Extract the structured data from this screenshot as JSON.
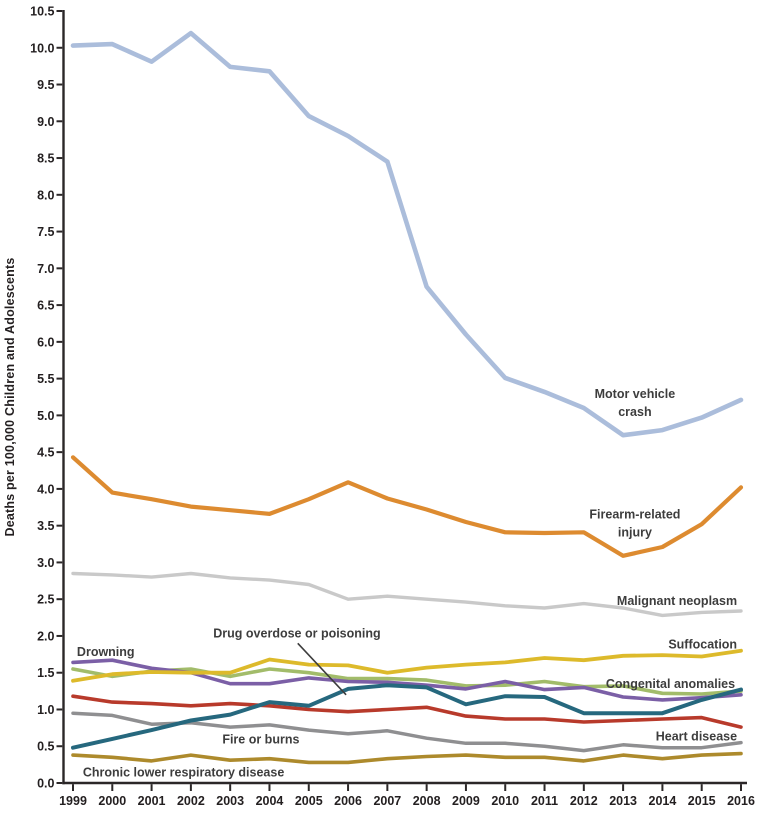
{
  "figure": {
    "background_color": "#ffffff",
    "axis_color": "#2b2728",
    "tick_text_color": "#231f20",
    "annotation_text_color": "#3d3d3d"
  },
  "chart_data": {
    "type": "line",
    "title": "",
    "xlabel": "",
    "ylabel": "Deaths per 100,000 Children and Adolescents",
    "ylim": [
      0,
      10.5
    ],
    "ytick_step": 0.5,
    "grid": false,
    "legend_position": "inline-annotations",
    "x": [
      1999,
      2000,
      2001,
      2002,
      2003,
      2004,
      2005,
      2006,
      2007,
      2008,
      2009,
      2010,
      2011,
      2012,
      2013,
      2014,
      2015,
      2016
    ],
    "series": [
      {
        "id": "chronic-lower-respiratory-disease",
        "name": "Chronic lower respiratory disease",
        "color": "#ad8a2c",
        "stroke_width": 3.6,
        "values": [
          0.38,
          0.35,
          0.3,
          0.38,
          0.31,
          0.33,
          0.28,
          0.28,
          0.33,
          0.36,
          0.38,
          0.35,
          0.35,
          0.3,
          0.38,
          0.33,
          0.38,
          0.4
        ]
      },
      {
        "id": "fire-or-burns",
        "name": "Fire or burns",
        "color": "#8f8f91",
        "stroke_width": 3.5,
        "values": [
          0.95,
          0.92,
          0.8,
          0.82,
          0.76,
          0.79,
          0.72,
          0.67,
          0.71,
          0.61,
          0.54,
          0.54,
          0.5,
          0.44,
          0.52,
          0.48,
          0.48,
          0.55
        ]
      },
      {
        "id": "heart-disease",
        "name": "Heart disease",
        "color": "#b83a2b",
        "stroke_width": 3.6,
        "values": [
          1.18,
          1.1,
          1.08,
          1.05,
          1.08,
          1.05,
          1.0,
          0.97,
          1.0,
          1.03,
          0.91,
          0.87,
          0.87,
          0.83,
          0.85,
          0.87,
          0.89,
          0.76
        ]
      },
      {
        "id": "malignant-neoplasm",
        "name": "Malignant neoplasm",
        "color": "#c9c9c9",
        "stroke_width": 3.4,
        "values": [
          2.85,
          2.83,
          2.8,
          2.85,
          2.79,
          2.76,
          2.7,
          2.5,
          2.54,
          2.5,
          2.46,
          2.41,
          2.38,
          2.44,
          2.38,
          2.28,
          2.32,
          2.34
        ]
      },
      {
        "id": "congenital-anomalies",
        "name": "Congenital anomalies",
        "color": "#a2bc6a",
        "stroke_width": 3.6,
        "values": [
          1.55,
          1.45,
          1.52,
          1.55,
          1.45,
          1.55,
          1.5,
          1.42,
          1.42,
          1.4,
          1.32,
          1.33,
          1.38,
          1.31,
          1.32,
          1.22,
          1.21,
          1.25
        ]
      },
      {
        "id": "drowning",
        "name": "Drowning",
        "color": "#7b5fa6",
        "stroke_width": 3.6,
        "values": [
          1.64,
          1.67,
          1.56,
          1.5,
          1.35,
          1.35,
          1.43,
          1.38,
          1.37,
          1.33,
          1.28,
          1.38,
          1.27,
          1.3,
          1.17,
          1.13,
          1.16,
          1.2
        ]
      },
      {
        "id": "suffocation",
        "name": "Suffocation",
        "color": "#ddba2b",
        "stroke_width": 3.8,
        "values": [
          1.39,
          1.48,
          1.51,
          1.5,
          1.5,
          1.68,
          1.61,
          1.6,
          1.5,
          1.57,
          1.61,
          1.64,
          1.7,
          1.67,
          1.73,
          1.74,
          1.72,
          1.8
        ]
      },
      {
        "id": "drug-overdose-or-poisoning",
        "name": "Drug overdose or poisoning",
        "color": "#26687e",
        "stroke_width": 4.0,
        "values": [
          0.48,
          0.6,
          0.72,
          0.85,
          0.93,
          1.1,
          1.05,
          1.28,
          1.33,
          1.3,
          1.07,
          1.18,
          1.17,
          0.95,
          0.95,
          0.95,
          1.13,
          1.27
        ]
      },
      {
        "id": "firearm-related-injury",
        "name": "Firearm-related injury",
        "color": "#dd8b30",
        "stroke_width": 4.2,
        "values": [
          4.43,
          3.95,
          3.86,
          3.76,
          3.71,
          3.66,
          3.86,
          4.09,
          3.87,
          3.72,
          3.55,
          3.41,
          3.4,
          3.41,
          3.09,
          3.21,
          3.52,
          4.02
        ]
      },
      {
        "id": "motor-vehicle-crash",
        "name": "Motor vehicle crash",
        "color": "#abbddb",
        "stroke_width": 4.6,
        "values": [
          10.03,
          10.05,
          9.81,
          10.2,
          9.74,
          9.68,
          9.07,
          8.8,
          8.45,
          6.75,
          6.1,
          5.51,
          5.32,
          5.1,
          4.73,
          4.8,
          4.97,
          5.21
        ]
      }
    ],
    "annotations": [
      {
        "id": "motor-vehicle-crash",
        "lines": [
          "Motor vehicle",
          "crash"
        ],
        "x": 2013.3,
        "y": 5.3,
        "anchor": "middle"
      },
      {
        "id": "firearm-related-injury",
        "lines": [
          "Firearm-related",
          "injury"
        ],
        "x": 2013.3,
        "y": 3.66,
        "anchor": "middle"
      },
      {
        "id": "malignant-neoplasm",
        "lines": [
          "Malignant neoplasm"
        ],
        "x": 2015.9,
        "y": 2.48,
        "anchor": "end"
      },
      {
        "id": "suffocation",
        "lines": [
          "Suffocation"
        ],
        "x": 2015.9,
        "y": 1.89,
        "anchor": "end"
      },
      {
        "id": "congenital-anomalies",
        "lines": [
          "Congenital anomalies"
        ],
        "x": 2015.85,
        "y": 1.35,
        "anchor": "end"
      },
      {
        "id": "heart-disease",
        "lines": [
          "Heart disease"
        ],
        "x": 2015.9,
        "y": 0.64,
        "anchor": "end"
      },
      {
        "id": "drowning",
        "lines": [
          "Drowning"
        ],
        "x": 1999.1,
        "y": 1.79,
        "anchor": "start"
      },
      {
        "id": "drug-overdose-or-poisoning",
        "lines": [
          "Drug overdose or poisoning"
        ],
        "x": 2004.7,
        "y": 2.04,
        "anchor": "middle"
      },
      {
        "id": "fire-or-burns",
        "lines": [
          "Fire or burns"
        ],
        "x": 2002.8,
        "y": 0.6,
        "anchor": "start"
      },
      {
        "id": "chronic-lower-respiratory-disease",
        "lines": [
          "Chronic lower respiratory disease"
        ],
        "x": 1999.25,
        "y": 0.15,
        "anchor": "start"
      }
    ],
    "pointer_line": {
      "x1": 2004.72,
      "y1": 1.9,
      "x2": 2005.95,
      "y2": 1.2
    }
  }
}
